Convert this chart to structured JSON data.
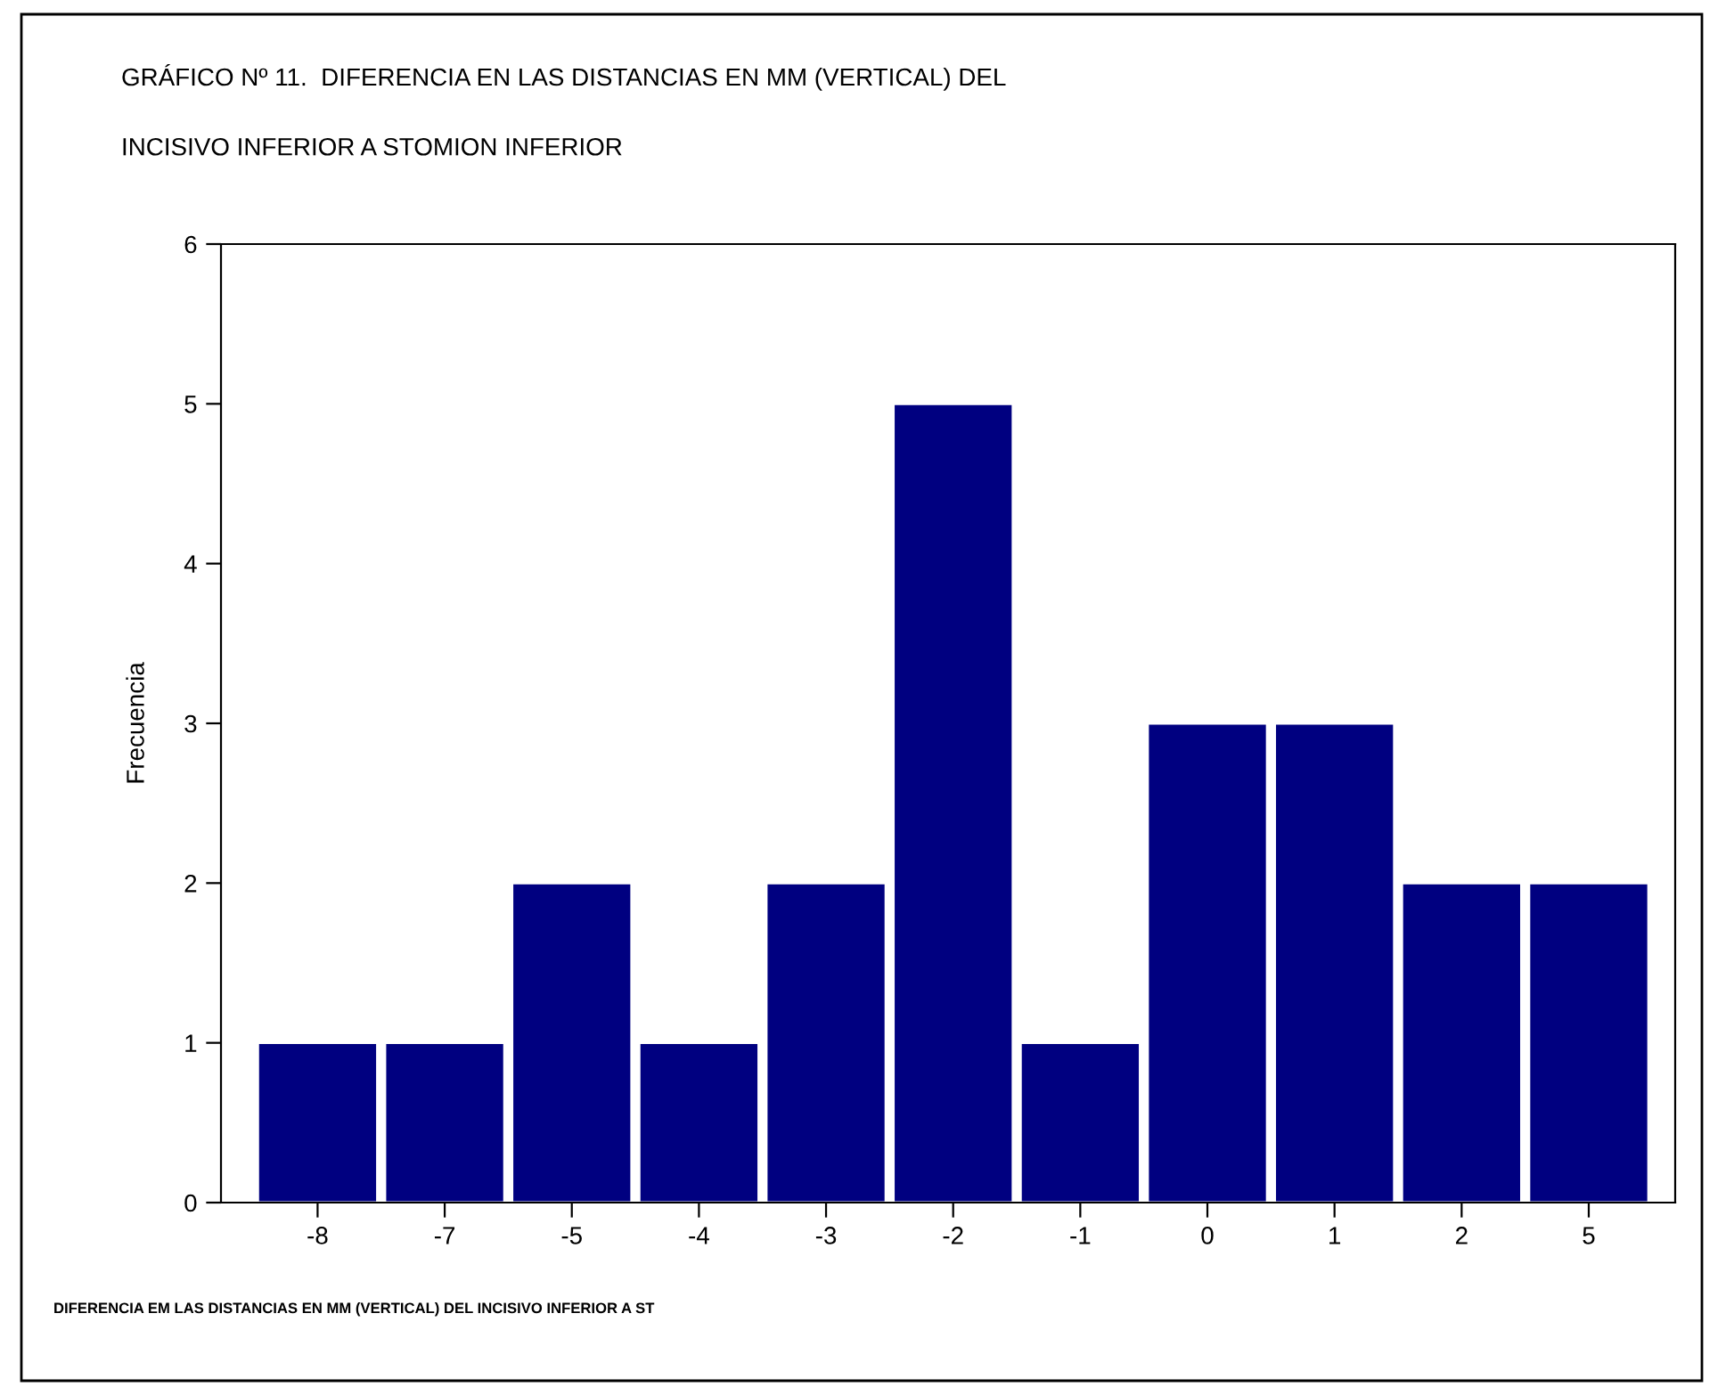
{
  "chart_data": {
    "type": "bar",
    "title": "GRÁFICO Nº 11.  DIFERENCIA EN LAS DISTANCIAS EN MM (VERTICAL) DEL\nINCISIVO INFERIOR A STOMION INFERIOR",
    "xlabel": "DIFERENCIA EM LAS DISTANCIAS EN MM (VERTICAL) DEL INCISIVO INFERIOR A ST",
    "ylabel": "Frecuencia",
    "categories": [
      "-8",
      "-7",
      "-5",
      "-4",
      "-3",
      "-2",
      "-1",
      "0",
      "1",
      "2",
      "5"
    ],
    "values": [
      1,
      1,
      2,
      1,
      2,
      5,
      1,
      3,
      3,
      2,
      2
    ],
    "color": "#000080",
    "ylim": [
      0,
      6
    ],
    "yticks": [
      0,
      1,
      2,
      3,
      4,
      5,
      6
    ],
    "grid": false,
    "legend": false
  }
}
